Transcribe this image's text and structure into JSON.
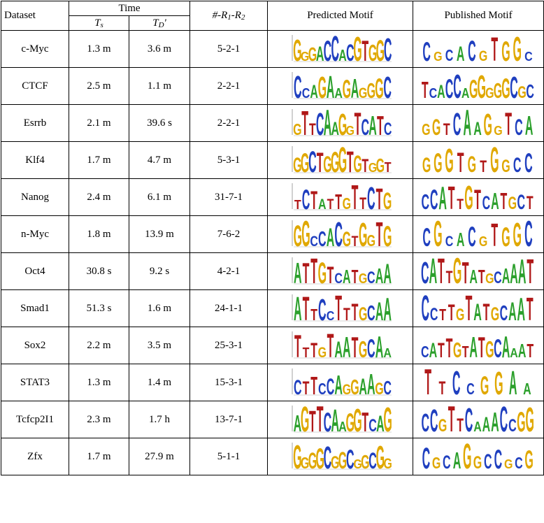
{
  "headers": {
    "dataset": "Dataset",
    "time": "Time",
    "ts_main": "T",
    "ts_sub": "s",
    "td_main": "T",
    "td_sub": "D",
    "td_prime": "'",
    "r_label": "#-R1-R2",
    "predicted": "Predicted Motif",
    "published": "Published Motif"
  },
  "rows": [
    {
      "dataset": "c-Myc",
      "ts": "1.3 m",
      "td": "3.6 m",
      "r": "5-2-1",
      "predicted": "GGGACCACGTGGC",
      "published": "CGCACGTGGC"
    },
    {
      "dataset": "CTCF",
      "ts": "2.5 m",
      "td": "1.1 m",
      "r": "2-2-1",
      "predicted": "CCAGAAGAGGGC",
      "published": "TCACCAGGGGGCGC"
    },
    {
      "dataset": "Esrrb",
      "ts": "2.1 m",
      "td": "39.6 s",
      "r": "2-2-1",
      "predicted": "GTTCAAGGTCATC",
      "published": "GGTCAAGGTCA"
    },
    {
      "dataset": "Klf4",
      "ts": "1.7 m",
      "td": "4.7 m",
      "r": "5-3-1",
      "predicted": "GGCTGGGTGTGGT",
      "published": "GGGTGTGGCC"
    },
    {
      "dataset": "Nanog",
      "ts": "2.4 m",
      "td": "6.1 m",
      "r": "31-7-1",
      "predicted": "TCTATTGTTCTG",
      "published": "CCATTGTCATGCT"
    },
    {
      "dataset": "n-Myc",
      "ts": "1.8 m",
      "td": "13.9 m",
      "r": "7-6-2",
      "predicted": "GGCCACGTGGTG",
      "published": "CGCACGTGGC"
    },
    {
      "dataset": "Oct4",
      "ts": "30.8 s",
      "td": "9.2 s",
      "r": "4-2-1",
      "predicted": "ATTGTCATGCAA",
      "published": "CATTGTATGCAAAT"
    },
    {
      "dataset": "Smad1",
      "ts": "51.3 s",
      "td": "1.6 m",
      "r": "24-1-1",
      "predicted": "ATTCCTTTGCAA",
      "published": "CCTTGTATGCAAT"
    },
    {
      "dataset": "Sox2",
      "ts": "2.2 m",
      "td": "3.5 m",
      "r": "25-3-1",
      "predicted": "TTTGTAATGCAA",
      "published": "CATTGTATGCAAAT"
    },
    {
      "dataset": "STAT3",
      "ts": "1.3 m",
      "td": "1.4 m",
      "r": "15-3-1",
      "predicted": "CTTCCAGGAAGC",
      "published": "TTCCGGAA"
    },
    {
      "dataset": "Tcfcp2I1",
      "ts": "2.3 m",
      "td": "1.7 h",
      "r": "13-7-1",
      "predicted": "AGTTCAAGGTCAG",
      "published": "CCGTTCAAACCGG"
    },
    {
      "dataset": "Zfx",
      "ts": "1.7 m",
      "td": "27.9 m",
      "r": "5-1-1",
      "predicted": "GGGGCGGCGGCGG",
      "published": "CGCAGGCCGCG"
    }
  ],
  "base_colors": {
    "A": "#2ca02c",
    "C": "#1f3fbf",
    "G": "#e0a800",
    "T": "#b01818"
  }
}
